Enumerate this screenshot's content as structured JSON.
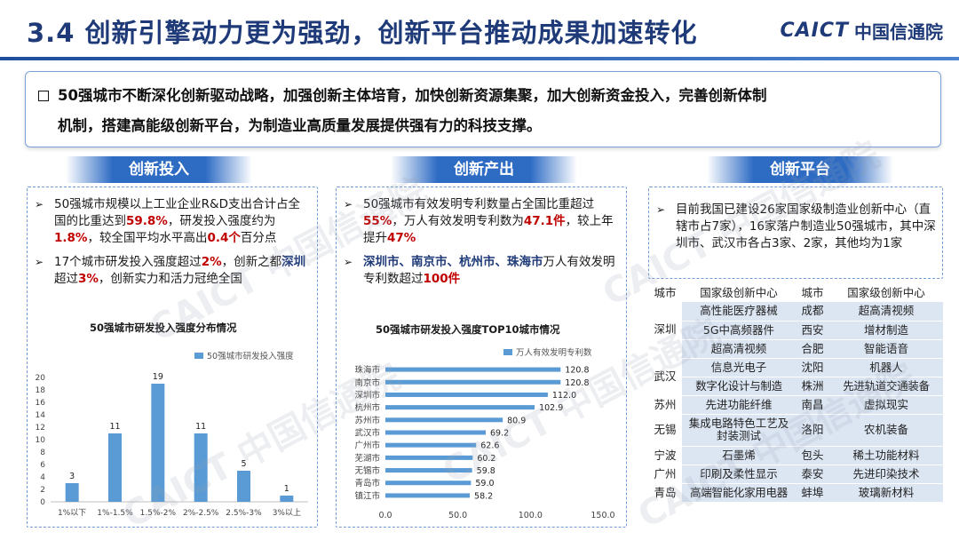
{
  "header": {
    "title": "3.4 创新引擎动力更为强劲，创新平台推动成果加速转化",
    "logo_en": "CAICT",
    "logo_cn": "中国信通院"
  },
  "intro": {
    "line1": "50强城市不断深化创新驱动战略，加强创新主体培育，加快创新资源集聚，加大创新资金投入，完善创新体制",
    "line2": "机制，搭建高能级创新平台，为制造业高质量发展提供强有力的科技支撑。"
  },
  "sections": {
    "investment": {
      "heading": "创新投入",
      "b1": {
        "t1": "50强城市规模以上工业企业R&D支出合计占全国的比重达到",
        "v1": "59.8%",
        "t2": "，研发投入强度约为",
        "v2": "1.8%",
        "t3": "，较全国平均水平高出",
        "v3": "0.4个",
        "t4": "百分点"
      },
      "b2": {
        "t1": "17个城市研发投入强度超过",
        "v1": "2%",
        "t2": "，创新之都",
        "v2": "深圳",
        "t3": "超过",
        "v3": "3%",
        "t4": "，创新实力和活力冠绝全国"
      }
    },
    "output": {
      "heading": "创新产出",
      "b1": {
        "t1": "50强城市有效发明专利数量占全国比重超过",
        "v1": "55%",
        "t2": "，万人有效发明专利数为",
        "v2": "47.1件",
        "t3": "，较上年提升",
        "v3": "47%"
      },
      "b2": {
        "cities": "深圳市、南京市、杭州市、珠海市",
        "t1": "万人有效发明专利数超过",
        "v1": "100件"
      }
    },
    "platform": {
      "heading": "创新平台",
      "b1": "目前我国已建设26家国家级制造业创新中心（直辖市占7家），16家落户制造业50强城市，其中深圳市、武汉市各占3家、2家，其他均为1家"
    }
  },
  "charts": {
    "dist": {
      "title": "50强城市研发投入强度分布情况",
      "legend": "50强城市研发投入强度"
    },
    "top10": {
      "title": "50强城市研发投入强度TOP10城市情况",
      "legend": "万人有效发明专利数"
    }
  },
  "chart_data": [
    {
      "type": "bar",
      "title": "50强城市研发投入强度分布情况",
      "categories": [
        "1%以下",
        "1%-1.5%",
        "1.5%-2%",
        "2%-2.5%",
        "2.5%-3%",
        "3%以上"
      ],
      "series": [
        {
          "name": "50强城市研发投入强度",
          "values": [
            3,
            11,
            19,
            11,
            5,
            1
          ]
        }
      ],
      "ylim": [
        0,
        20
      ],
      "yticks": [
        0,
        2,
        4,
        6,
        8,
        10,
        12,
        14,
        16,
        18,
        20
      ],
      "color": "#5b9bd5"
    },
    {
      "type": "bar",
      "orientation": "horizontal",
      "title": "50强城市研发投入强度TOP10城市情况",
      "categories": [
        "珠海市",
        "南京市",
        "深圳市",
        "杭州市",
        "苏州市",
        "武汉市",
        "广州市",
        "芜湖市",
        "无锡市",
        "青岛市",
        "镇江市"
      ],
      "series": [
        {
          "name": "万人有效发明专利数",
          "values": [
            120.8,
            120.8,
            112.0,
            102.9,
            80.9,
            69.2,
            62.6,
            60.2,
            59.8,
            59.0,
            58.2
          ]
        }
      ],
      "labels": [
        "120.8",
        "120.8",
        "112.0",
        "102.9",
        "80.9",
        "69.2",
        "62.6",
        "60.2",
        "59.8",
        "59.0",
        "58.2"
      ],
      "xlim": [
        0,
        150
      ],
      "xticks": [
        "0.0",
        "50.0",
        "100.0",
        "150.0"
      ],
      "color": "#5b9bd5"
    }
  ],
  "platform_table": {
    "headers": [
      "城市",
      "国家级创新中心",
      "城市",
      "国家级创新中心"
    ],
    "rows": [
      [
        "深圳",
        "高性能医疗器械",
        "成都",
        "超高清视频"
      ],
      [
        "",
        "5G中高频器件",
        "西安",
        "增材制造"
      ],
      [
        "",
        "超高清视频",
        "合肥",
        "智能语音"
      ],
      [
        "武汉",
        "信息光电子",
        "沈阳",
        "机器人"
      ],
      [
        "",
        "数字化设计与制造",
        "株洲",
        "先进轨道交通装备"
      ],
      [
        "苏州",
        "先进功能纤维",
        "南昌",
        "虚拟现实"
      ],
      [
        "无锡",
        "集成电路特色工艺及封装测试",
        "洛阳",
        "农机装备"
      ],
      [
        "宁波",
        "石墨烯",
        "包头",
        "稀土功能材料"
      ],
      [
        "广州",
        "印刷及柔性显示",
        "泰安",
        "先进印染技术"
      ],
      [
        "青岛",
        "高端智能化家用电器",
        "蚌埠",
        "玻璃新材料"
      ]
    ]
  },
  "watermark": "CAICT 中国信通院",
  "colors": {
    "title": "#1f3a78",
    "accent": "#2e6cc4",
    "bar": "#5b9bd5",
    "highlight": "#c00000",
    "table_fill": "#dce6f3"
  }
}
